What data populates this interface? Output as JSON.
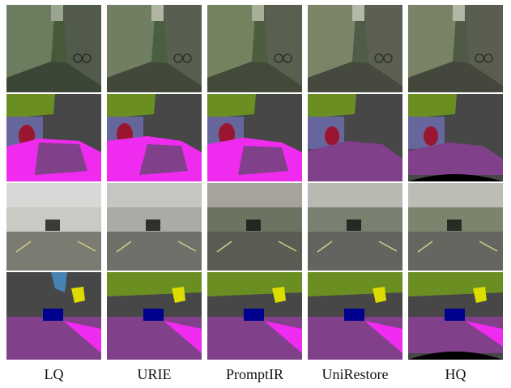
{
  "columns": [
    {
      "label": "LQ"
    },
    {
      "label": "URIE"
    },
    {
      "label": "PromptIR"
    },
    {
      "label": "UniRestore"
    },
    {
      "label": "HQ"
    }
  ],
  "rows": [
    {
      "kind": "photo-street-dark"
    },
    {
      "kind": "segmentation-map-1"
    },
    {
      "kind": "photo-road-hazy"
    },
    {
      "kind": "segmentation-map-2"
    }
  ],
  "colors": {
    "road": "#80408a",
    "sidewalk": "#ee2bee",
    "building": "#474747",
    "vegetation": "#6b8e23",
    "sky": "#4682b4",
    "car": "#00008e",
    "wall": "#66669c",
    "person": "#9a1630",
    "pole": "#999999",
    "traffic-sign": "#dcdc00",
    "void": "#000000"
  }
}
